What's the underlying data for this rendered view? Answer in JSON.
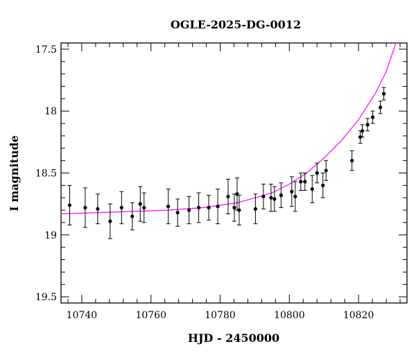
{
  "chart_data": {
    "type": "scatter",
    "title": "OGLE-2025-DG-0012",
    "xlabel": "HJD - 2450000",
    "ylabel": "I magnitude",
    "xlim": [
      10734,
      10834
    ],
    "ylim": [
      19.55,
      17.45
    ],
    "y_inverted": true,
    "grid": false,
    "x_ticks": [
      10740,
      10760,
      10780,
      10800,
      10820
    ],
    "x_tick_labels": [
      "10740",
      "10760",
      "10780",
      "10800",
      "10820"
    ],
    "y_ticks": [
      17.5,
      18,
      18.5,
      19,
      19.5
    ],
    "y_tick_labels": [
      "17.5",
      "18",
      "18.5",
      "19",
      "19.5"
    ],
    "colors": {
      "model": "#ff00ff",
      "points": "#000000",
      "axes": "#000000"
    },
    "series": [
      {
        "type": "scatter_errorbar",
        "x": [
          10736.5,
          10741.0,
          10744.6,
          10748.2,
          10751.5,
          10754.6,
          10756.9,
          10758.0,
          10765.0,
          10767.7,
          10771.0,
          10773.8,
          10776.7,
          10779.3,
          10782.3,
          10784.1,
          10784.9,
          10785.5,
          10790.2,
          10792.5,
          10794.7,
          10795.7,
          10797.6,
          10800.7,
          10801.7,
          10803.3,
          10804.5,
          10806.6,
          10808.0,
          10809.7,
          10810.6,
          10818.1,
          10820.5,
          10821.1,
          10822.6,
          10824.1,
          10826.3,
          10827.3
        ],
        "y": [
          18.76,
          18.78,
          18.79,
          18.89,
          18.78,
          18.85,
          18.75,
          18.78,
          18.77,
          18.82,
          18.8,
          18.78,
          18.78,
          18.77,
          18.69,
          18.78,
          18.67,
          18.8,
          18.79,
          18.69,
          18.7,
          18.71,
          18.68,
          18.65,
          18.69,
          18.57,
          18.57,
          18.63,
          18.5,
          18.6,
          18.48,
          18.4,
          18.21,
          18.16,
          18.11,
          18.05,
          17.97,
          17.86
        ],
        "yerr": [
          0.16,
          0.16,
          0.12,
          0.14,
          0.13,
          0.11,
          0.14,
          0.12,
          0.14,
          0.11,
          0.11,
          0.12,
          0.1,
          0.14,
          0.14,
          0.11,
          0.13,
          0.12,
          0.12,
          0.1,
          0.11,
          0.1,
          0.1,
          0.12,
          0.12,
          0.07,
          0.07,
          0.11,
          0.08,
          0.1,
          0.08,
          0.08,
          0.05,
          0.05,
          0.05,
          0.05,
          0.05,
          0.05
        ]
      },
      {
        "type": "line",
        "x": [
          10734,
          10745,
          10755,
          10765,
          10775,
          10785,
          10795,
          10800,
          10805,
          10810,
          10815,
          10820,
          10825,
          10828,
          10830.8
        ],
        "y": [
          18.83,
          18.82,
          18.81,
          18.8,
          18.78,
          18.74,
          18.66,
          18.59,
          18.5,
          18.38,
          18.24,
          18.07,
          17.85,
          17.68,
          17.45
        ]
      }
    ]
  }
}
